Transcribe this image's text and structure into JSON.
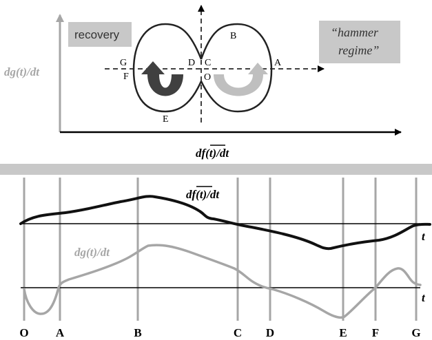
{
  "top_diagram": {
    "y_axis_label": "dg(t)/dt",
    "x_axis_label": "df(t)/dt",
    "recovery_label": "recovery",
    "hammer_label_line1": "“hammer",
    "hammer_label_line2": "regime”",
    "point_labels": {
      "A": "A",
      "B": "B",
      "C": "C",
      "D": "D",
      "E": "E",
      "F": "F",
      "G": "G",
      "O": "O"
    },
    "colors": {
      "axis_gray": "#a6a6a6",
      "label_box": "#c8c8c8",
      "dark_arrow": "#404040",
      "light_arrow": "#bfbfbf",
      "loop": "#222222"
    }
  },
  "bottom_plot": {
    "series_f_label": "df(t)/dt",
    "series_g_label": "dg(t)/dt",
    "t_label_upper": "t",
    "t_label_lower": "t",
    "time_markers": [
      "O",
      "A",
      "B",
      "C",
      "D",
      "E",
      "F",
      "G"
    ],
    "colors": {
      "separator": "#c8c8c8",
      "marker_line": "#a6a6a6",
      "series_f": "#111111",
      "series_g": "#a6a6a6"
    }
  }
}
